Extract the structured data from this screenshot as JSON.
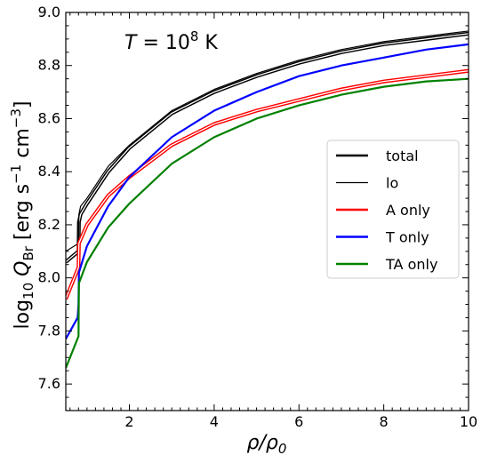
{
  "chart_data": {
    "type": "line",
    "annotation": {
      "prefix": "T",
      "eq": " = 10",
      "sup": "8",
      "unit": " K"
    },
    "xlabel": {
      "a": "ρ/ρ",
      "sub": "0"
    },
    "ylabel": {
      "pre": "log",
      "pre_sub": "10",
      "q": " Q",
      "q_sub": "Br",
      "unit_a": " [erg s",
      "exp1": "−1",
      "unit_b": " cm",
      "exp2": "−3",
      "unit_c": "]"
    },
    "xlim": [
      0.5,
      10
    ],
    "ylim": [
      7.5,
      9.0
    ],
    "xticks": [
      2,
      4,
      6,
      8,
      10
    ],
    "xtick_labels": [
      "2",
      "4",
      "6",
      "8",
      "10"
    ],
    "yticks": [
      7.6,
      7.8,
      8.0,
      8.2,
      8.4,
      8.6,
      8.8,
      9.0
    ],
    "ytick_labels": [
      "7.6",
      "7.8",
      "8.0",
      "8.2",
      "8.4",
      "8.6",
      "8.8",
      "9.0"
    ],
    "grid": false,
    "legend_position": "center-right",
    "series": [
      {
        "name": "total",
        "color": "#000000",
        "style": "double",
        "x": [
          0.5,
          0.8,
          0.81,
          0.85,
          1,
          1.5,
          2,
          3,
          4,
          5,
          6,
          7,
          8,
          9,
          10
        ],
        "y": [
          8.06,
          8.1,
          8.21,
          8.24,
          8.28,
          8.4,
          8.49,
          8.62,
          8.7,
          8.76,
          8.81,
          8.85,
          8.88,
          8.9,
          8.92
        ]
      },
      {
        "name": "lo",
        "color": "#000000",
        "style": "thin",
        "x": [
          0.5,
          0.8,
          0.81,
          0.85,
          1,
          1.5,
          2,
          3,
          4,
          5,
          6,
          7,
          8,
          9,
          10
        ],
        "y": [
          8.1,
          8.13,
          8.24,
          8.27,
          8.3,
          8.42,
          8.5,
          8.63,
          8.71,
          8.77,
          8.82,
          8.86,
          8.89,
          8.91,
          8.93
        ]
      },
      {
        "name": "A only",
        "color": "#ff0000",
        "style": "double",
        "x": [
          0.5,
          0.8,
          0.81,
          1,
          1.5,
          2,
          3,
          4,
          5,
          6,
          7,
          8,
          9,
          10
        ],
        "y": [
          7.92,
          8.04,
          8.13,
          8.2,
          8.31,
          8.38,
          8.5,
          8.58,
          8.63,
          8.67,
          8.71,
          8.74,
          8.76,
          8.78
        ]
      },
      {
        "name": "T only",
        "color": "#0000ff",
        "style": "solid",
        "x": [
          0.5,
          0.78,
          0.8,
          0.81,
          1,
          1.5,
          2,
          3,
          4,
          5,
          6,
          7,
          8,
          9,
          10
        ],
        "y": [
          7.77,
          7.85,
          7.9,
          8.02,
          8.12,
          8.27,
          8.38,
          8.53,
          8.63,
          8.7,
          8.76,
          8.8,
          8.83,
          8.86,
          8.88
        ]
      },
      {
        "name": "TA only",
        "color": "#008000",
        "style": "solid",
        "x": [
          0.5,
          0.8,
          0.81,
          1,
          1.5,
          2,
          3,
          4,
          5,
          6,
          7,
          8,
          9,
          10
        ],
        "y": [
          7.66,
          7.78,
          7.98,
          8.06,
          8.19,
          8.28,
          8.43,
          8.53,
          8.6,
          8.65,
          8.69,
          8.72,
          8.74,
          8.75
        ]
      }
    ]
  }
}
